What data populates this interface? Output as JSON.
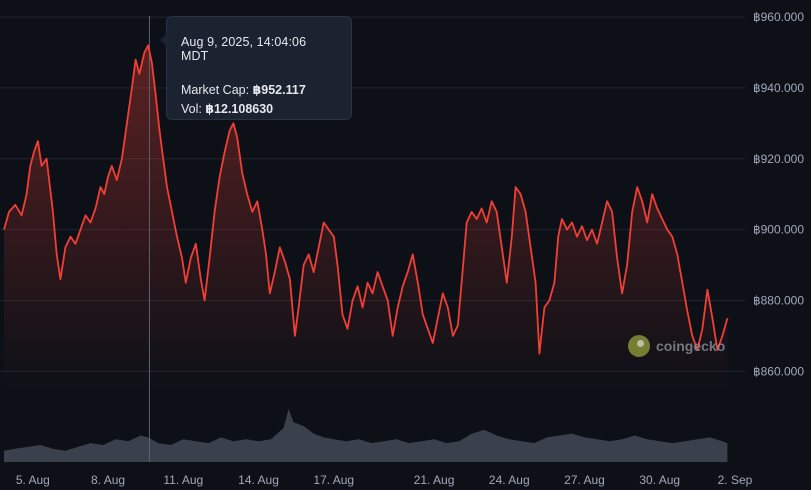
{
  "chart_data": {
    "type": "area",
    "title": "",
    "xlabel": "",
    "ylabel": "",
    "currency_symbol": "฿",
    "x_ticks": [
      "5. Aug",
      "8. Aug",
      "11. Aug",
      "14. Aug",
      "17. Aug",
      "21. Aug",
      "24. Aug",
      "27. Aug",
      "30. Aug",
      "2. Sep"
    ],
    "y_ticks": [
      "฿860.000",
      "฿880.000",
      "฿900.000",
      "฿920.000",
      "฿940.000",
      "฿960.000"
    ],
    "ylim": [
      855,
      962
    ],
    "xlim": [
      3.85,
      33.4
    ],
    "grid": true,
    "line_color": "#f23f35",
    "fill_color": "#f23f35",
    "volume_color": "#3a404c",
    "series": [
      {
        "values": [
          [
            3.85,
            900
          ],
          [
            4.05,
            905
          ],
          [
            4.3,
            907
          ],
          [
            4.55,
            904
          ],
          [
            4.75,
            910
          ],
          [
            4.9,
            918
          ],
          [
            5.05,
            922
          ],
          [
            5.2,
            925
          ],
          [
            5.35,
            918
          ],
          [
            5.55,
            920
          ],
          [
            5.8,
            905
          ],
          [
            5.95,
            893
          ],
          [
            6.1,
            886
          ],
          [
            6.3,
            895
          ],
          [
            6.5,
            898
          ],
          [
            6.7,
            896
          ],
          [
            6.9,
            900
          ],
          [
            7.1,
            904
          ],
          [
            7.3,
            902
          ],
          [
            7.5,
            906
          ],
          [
            7.7,
            912
          ],
          [
            7.85,
            910
          ],
          [
            8.0,
            915
          ],
          [
            8.15,
            918
          ],
          [
            8.35,
            914
          ],
          [
            8.55,
            920
          ],
          [
            8.75,
            930
          ],
          [
            8.95,
            940
          ],
          [
            9.1,
            948
          ],
          [
            9.25,
            944
          ],
          [
            9.45,
            950
          ],
          [
            9.6,
            952
          ],
          [
            9.75,
            947
          ],
          [
            9.9,
            938
          ],
          [
            10.05,
            928
          ],
          [
            10.2,
            920
          ],
          [
            10.35,
            912
          ],
          [
            10.55,
            905
          ],
          [
            10.75,
            898
          ],
          [
            10.95,
            892
          ],
          [
            11.1,
            885
          ],
          [
            11.3,
            892
          ],
          [
            11.5,
            896
          ],
          [
            11.7,
            886
          ],
          [
            11.85,
            880
          ],
          [
            12.05,
            892
          ],
          [
            12.25,
            905
          ],
          [
            12.45,
            915
          ],
          [
            12.65,
            922
          ],
          [
            12.85,
            928
          ],
          [
            13.0,
            930
          ],
          [
            13.15,
            926
          ],
          [
            13.35,
            916
          ],
          [
            13.55,
            910
          ],
          [
            13.75,
            905
          ],
          [
            13.95,
            908
          ],
          [
            14.15,
            900
          ],
          [
            14.3,
            893
          ],
          [
            14.45,
            882
          ],
          [
            14.65,
            888
          ],
          [
            14.85,
            895
          ],
          [
            15.05,
            891
          ],
          [
            15.25,
            886
          ],
          [
            15.45,
            870
          ],
          [
            15.6,
            878
          ],
          [
            15.8,
            890
          ],
          [
            16.0,
            893
          ],
          [
            16.2,
            888
          ],
          [
            16.4,
            895
          ],
          [
            16.6,
            902
          ],
          [
            16.8,
            900
          ],
          [
            17.0,
            898
          ],
          [
            17.15,
            890
          ],
          [
            17.35,
            876
          ],
          [
            17.55,
            872
          ],
          [
            17.75,
            880
          ],
          [
            17.95,
            884
          ],
          [
            18.15,
            878
          ],
          [
            18.35,
            885
          ],
          [
            18.55,
            882
          ],
          [
            18.75,
            888
          ],
          [
            18.95,
            884
          ],
          [
            19.15,
            880
          ],
          [
            19.35,
            870
          ],
          [
            19.55,
            878
          ],
          [
            19.75,
            884
          ],
          [
            19.95,
            888
          ],
          [
            20.15,
            893
          ],
          [
            20.35,
            885
          ],
          [
            20.55,
            876
          ],
          [
            20.75,
            872
          ],
          [
            20.95,
            868
          ],
          [
            21.15,
            875
          ],
          [
            21.35,
            882
          ],
          [
            21.55,
            878
          ],
          [
            21.75,
            870
          ],
          [
            21.95,
            873
          ],
          [
            22.1,
            885
          ],
          [
            22.3,
            902
          ],
          [
            22.5,
            905
          ],
          [
            22.7,
            903
          ],
          [
            22.9,
            906
          ],
          [
            23.1,
            902
          ],
          [
            23.3,
            908
          ],
          [
            23.5,
            905
          ],
          [
            23.7,
            895
          ],
          [
            23.9,
            885
          ],
          [
            24.1,
            898
          ],
          [
            24.25,
            912
          ],
          [
            24.45,
            910
          ],
          [
            24.65,
            905
          ],
          [
            24.85,
            895
          ],
          [
            25.05,
            885
          ],
          [
            25.2,
            865
          ],
          [
            25.4,
            878
          ],
          [
            25.6,
            880
          ],
          [
            25.8,
            885
          ],
          [
            25.95,
            898
          ],
          [
            26.1,
            903
          ],
          [
            26.3,
            900
          ],
          [
            26.5,
            902
          ],
          [
            26.7,
            898
          ],
          [
            26.9,
            901
          ],
          [
            27.1,
            897
          ],
          [
            27.3,
            900
          ],
          [
            27.5,
            896
          ],
          [
            27.7,
            902
          ],
          [
            27.9,
            908
          ],
          [
            28.1,
            905
          ],
          [
            28.3,
            892
          ],
          [
            28.5,
            882
          ],
          [
            28.7,
            890
          ],
          [
            28.9,
            905
          ],
          [
            29.1,
            912
          ],
          [
            29.3,
            908
          ],
          [
            29.5,
            902
          ],
          [
            29.7,
            910
          ],
          [
            29.9,
            906
          ],
          [
            30.1,
            903
          ],
          [
            30.3,
            900
          ],
          [
            30.5,
            898
          ],
          [
            30.7,
            893
          ],
          [
            30.9,
            885
          ],
          [
            31.1,
            877
          ],
          [
            31.3,
            870
          ],
          [
            31.5,
            866
          ],
          [
            31.7,
            872
          ],
          [
            31.9,
            883
          ],
          [
            32.1,
            875
          ],
          [
            32.3,
            866
          ],
          [
            32.5,
            870
          ],
          [
            32.7,
            875
          ]
        ]
      }
    ],
    "volume": [
      [
        3.85,
        0.3
      ],
      [
        4.3,
        0.35
      ],
      [
        4.8,
        0.4
      ],
      [
        5.3,
        0.45
      ],
      [
        5.8,
        0.35
      ],
      [
        6.3,
        0.3
      ],
      [
        6.8,
        0.4
      ],
      [
        7.3,
        0.5
      ],
      [
        7.8,
        0.45
      ],
      [
        8.3,
        0.6
      ],
      [
        8.8,
        0.55
      ],
      [
        9.3,
        0.7
      ],
      [
        9.6,
        0.65
      ],
      [
        10.0,
        0.5
      ],
      [
        10.5,
        0.45
      ],
      [
        11.0,
        0.6
      ],
      [
        11.5,
        0.55
      ],
      [
        12.0,
        0.5
      ],
      [
        12.5,
        0.65
      ],
      [
        13.0,
        0.55
      ],
      [
        13.5,
        0.6
      ],
      [
        14.0,
        0.55
      ],
      [
        14.5,
        0.6
      ],
      [
        15.0,
        0.9
      ],
      [
        15.2,
        1.4
      ],
      [
        15.4,
        1.05
      ],
      [
        15.8,
        0.95
      ],
      [
        16.2,
        0.75
      ],
      [
        16.6,
        0.65
      ],
      [
        17.0,
        0.6
      ],
      [
        17.5,
        0.55
      ],
      [
        18.0,
        0.6
      ],
      [
        18.5,
        0.5
      ],
      [
        19.0,
        0.55
      ],
      [
        19.5,
        0.6
      ],
      [
        20.0,
        0.5
      ],
      [
        20.5,
        0.55
      ],
      [
        21.0,
        0.6
      ],
      [
        21.5,
        0.5
      ],
      [
        22.0,
        0.55
      ],
      [
        22.5,
        0.75
      ],
      [
        23.0,
        0.85
      ],
      [
        23.5,
        0.7
      ],
      [
        24.0,
        0.6
      ],
      [
        24.5,
        0.55
      ],
      [
        25.0,
        0.5
      ],
      [
        25.5,
        0.65
      ],
      [
        26.0,
        0.7
      ],
      [
        26.5,
        0.75
      ],
      [
        27.0,
        0.65
      ],
      [
        27.5,
        0.6
      ],
      [
        28.0,
        0.55
      ],
      [
        28.5,
        0.6
      ],
      [
        29.0,
        0.7
      ],
      [
        29.5,
        0.6
      ],
      [
        30.0,
        0.55
      ],
      [
        30.5,
        0.5
      ],
      [
        31.0,
        0.55
      ],
      [
        31.5,
        0.6
      ],
      [
        32.0,
        0.65
      ],
      [
        32.5,
        0.55
      ],
      [
        32.7,
        0.5
      ]
    ],
    "crosshair_x": 9.65,
    "tooltip": {
      "date": "Aug 9, 2025, 14:04:06 MDT",
      "market_cap_label": "Market Cap:",
      "market_cap_value": "฿952.117",
      "volume_label": "Vol:",
      "volume_value": "฿12.108630"
    }
  },
  "watermark": {
    "logo_icon": "coingecko-gecko-icon",
    "text": "coingecko"
  }
}
